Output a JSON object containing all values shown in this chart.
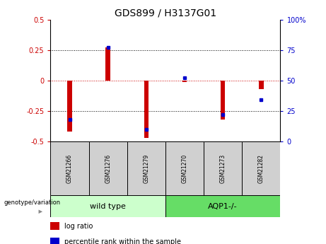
{
  "title": "GDS899 / H3137G01",
  "samples": [
    "GSM21266",
    "GSM21276",
    "GSM21279",
    "GSM21270",
    "GSM21273",
    "GSM21282"
  ],
  "log_ratios": [
    -0.42,
    0.27,
    -0.47,
    -0.01,
    -0.32,
    -0.07
  ],
  "percentile_ranks": [
    18,
    77,
    10,
    52,
    22,
    34
  ],
  "groups": [
    "wild type",
    "wild type",
    "wild type",
    "AQP1-/-",
    "AQP1-/-",
    "AQP1-/-"
  ],
  "wt_color": "#CCFFCC",
  "aqp_color": "#66DD66",
  "sample_box_color": "#D0D0D0",
  "bar_color": "#CC0000",
  "dot_color": "#0000CC",
  "ylim": [
    -0.5,
    0.5
  ],
  "y2lim": [
    0,
    100
  ],
  "yticks": [
    -0.5,
    -0.25,
    0.0,
    0.25,
    0.5
  ],
  "y2ticks": [
    0,
    25,
    50,
    75,
    100
  ],
  "dotted_lines": [
    -0.25,
    0.25
  ],
  "zero_line_color": "#CC0000",
  "dotted_color": "black",
  "legend_items": [
    "log ratio",
    "percentile rank within the sample"
  ],
  "genotype_label": "genotype/variation",
  "ylabel_left_color": "#CC0000",
  "ylabel_right_color": "#0000CC",
  "bar_width": 0.12
}
